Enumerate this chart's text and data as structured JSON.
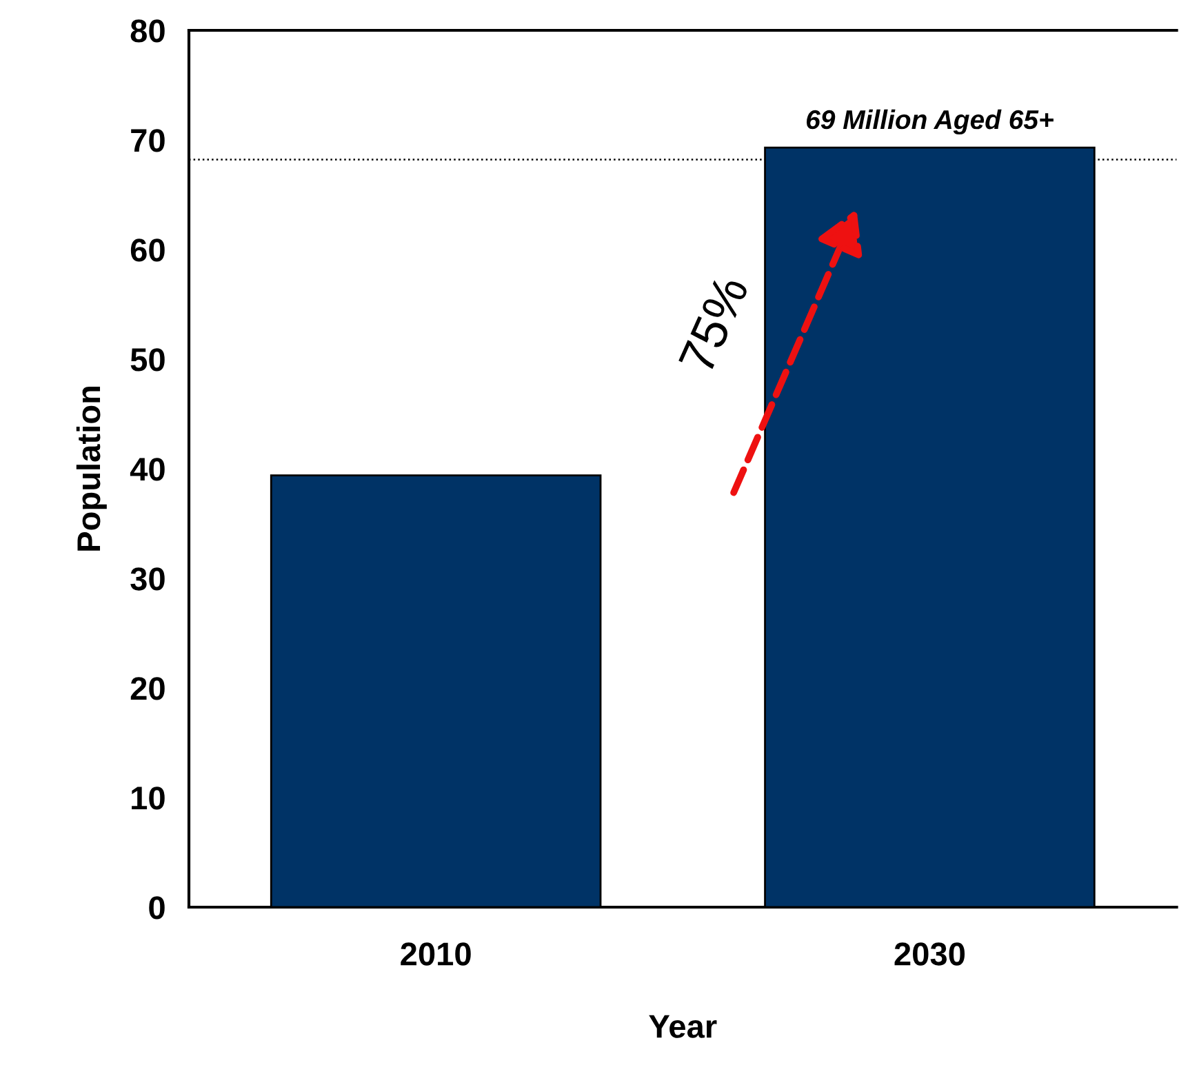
{
  "chart_data": {
    "type": "bar",
    "xlabel": "Year",
    "ylabel": "Population",
    "categories": [
      "2010",
      "2030"
    ],
    "values": [
      39.4,
      69.3
    ],
    "color": "#003366",
    "ylim": [
      0,
      80
    ],
    "yticks": [
      0,
      10,
      20,
      30,
      40,
      50,
      60,
      70,
      80
    ],
    "grid": false,
    "ref_lines": [
      {
        "axis": "y",
        "value": 68.2,
        "line_style": "dotted",
        "color": "#000000"
      }
    ],
    "annotations": [
      {
        "text": "69 Million Aged 65+",
        "x": "2030",
        "y": 69.3
      },
      "75%"
    ]
  }
}
